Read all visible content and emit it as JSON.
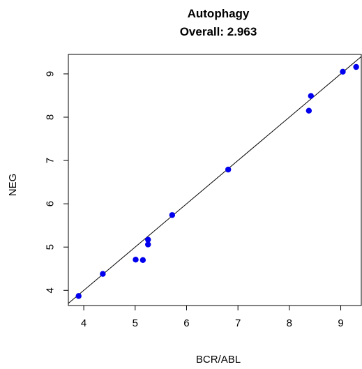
{
  "chart_data": {
    "type": "scatter",
    "title": "Autophagy",
    "subtitle": "Overall: 2.963",
    "xlabel": "BCR/ABL",
    "ylabel": "NEG",
    "xlim": [
      3.7,
      9.4
    ],
    "ylim": [
      3.65,
      9.45
    ],
    "xticks": [
      4,
      5,
      6,
      7,
      8,
      9
    ],
    "yticks": [
      4,
      5,
      6,
      7,
      8,
      9
    ],
    "reference_line": "y = x",
    "point_color": "#0000ee",
    "points": [
      {
        "x": 3.9,
        "y": 3.87
      },
      {
        "x": 4.37,
        "y": 4.38
      },
      {
        "x": 5.01,
        "y": 4.71
      },
      {
        "x": 5.15,
        "y": 4.7
      },
      {
        "x": 5.25,
        "y": 5.17
      },
      {
        "x": 5.25,
        "y": 5.06
      },
      {
        "x": 5.72,
        "y": 5.74
      },
      {
        "x": 6.81,
        "y": 6.79
      },
      {
        "x": 8.38,
        "y": 8.15
      },
      {
        "x": 8.42,
        "y": 8.49
      },
      {
        "x": 9.04,
        "y": 9.05
      },
      {
        "x": 9.3,
        "y": 9.16
      }
    ]
  }
}
